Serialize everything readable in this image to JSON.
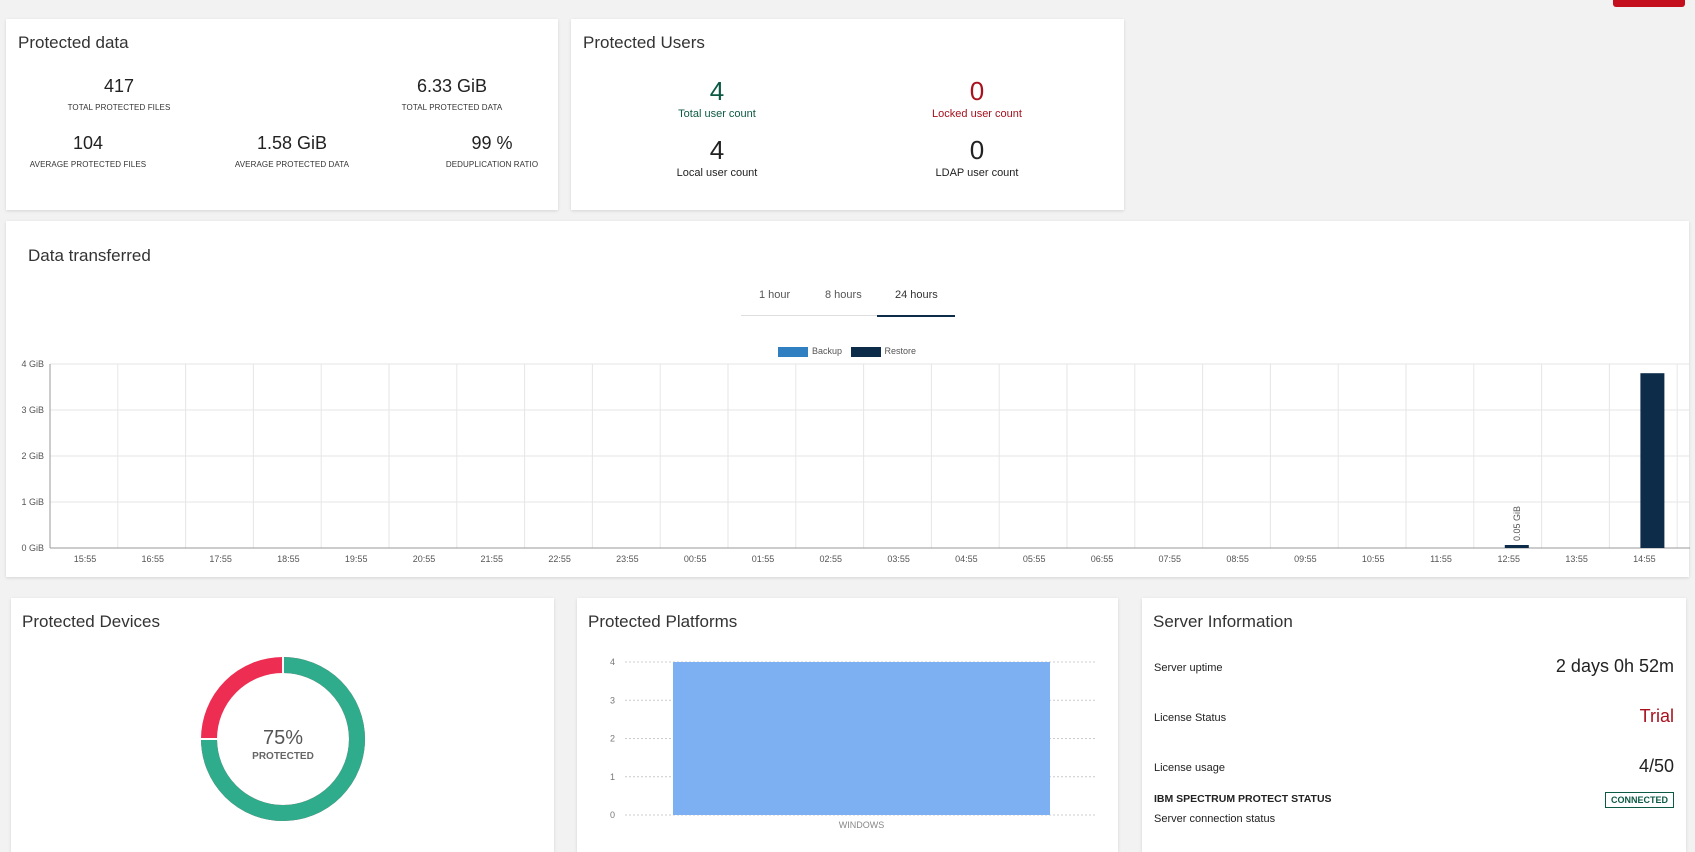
{
  "protected_data": {
    "title": "Protected data",
    "stats": [
      {
        "value": "417",
        "label": "TOTAL PROTECTED FILES"
      },
      {
        "value": "6.33 GiB",
        "label": "TOTAL PROTECTED DATA"
      },
      {
        "value": "104",
        "label": "AVERAGE PROTECTED FILES"
      },
      {
        "value": "1.58 GiB",
        "label": "AVERAGE PROTECTED DATA"
      },
      {
        "value": "99 %",
        "label": "DEDUPLICATION RATIO"
      }
    ]
  },
  "protected_users": {
    "title": "Protected Users",
    "total": {
      "value": "4",
      "label": "Total user count"
    },
    "locked": {
      "value": "0",
      "label": "Locked user count"
    },
    "local": {
      "value": "4",
      "label": "Local user count"
    },
    "ldap": {
      "value": "0",
      "label": "LDAP user count"
    }
  },
  "data_transferred": {
    "title": "Data transferred",
    "tabs": [
      {
        "label": "1 hour",
        "active": false
      },
      {
        "label": "8 hours",
        "active": false
      },
      {
        "label": "24 hours",
        "active": true
      }
    ],
    "legend": [
      {
        "name": "Backup",
        "color": "#2f7fc1"
      },
      {
        "name": "Restore",
        "color": "#0d2c4a"
      }
    ]
  },
  "protected_devices": {
    "title": "Protected Devices",
    "percent_text": "75%",
    "label": "PROTECTED",
    "protected_fraction": 0.75,
    "colors": {
      "protected": "#2fac8c",
      "unprotected": "#ee2d52"
    }
  },
  "protected_platforms": {
    "title": "Protected Platforms"
  },
  "server_info": {
    "title": "Server Information",
    "uptime_label": "Server uptime",
    "uptime_value": "2 days 0h 52m",
    "license_status_label": "License Status",
    "license_status_value": "Trial",
    "license_usage_label": "License usage",
    "license_usage_value": "4/50",
    "spectrum_label": "IBM SPECTRUM PROTECT STATUS",
    "spectrum_badge": "CONNECTED",
    "connection_label": "Server connection status"
  },
  "chart_data": [
    {
      "type": "bar",
      "categories": [
        "15:55",
        "16:55",
        "17:55",
        "18:55",
        "19:55",
        "20:55",
        "21:55",
        "22:55",
        "23:55",
        "00:55",
        "01:55",
        "02:55",
        "03:55",
        "04:55",
        "05:55",
        "06:55",
        "07:55",
        "08:55",
        "09:55",
        "10:55",
        "11:55",
        "12:55",
        "13:55",
        "14:55"
      ],
      "series": [
        {
          "name": "Backup",
          "values": [
            0,
            0,
            0,
            0,
            0,
            0,
            0,
            0,
            0,
            0,
            0,
            0,
            0,
            0,
            0,
            0,
            0,
            0,
            0,
            0,
            0,
            0,
            0,
            0
          ]
        },
        {
          "name": "Restore",
          "values": [
            0,
            0,
            0,
            0,
            0,
            0,
            0,
            0,
            0,
            0,
            0,
            0,
            0,
            0,
            0,
            0,
            0,
            0,
            0,
            0,
            0,
            0.05,
            0,
            3.8
          ]
        }
      ],
      "ylim": [
        0,
        4
      ],
      "yticks": [
        "0 GiB",
        "1 GiB",
        "2 GiB",
        "3 GiB",
        "4 GiB"
      ],
      "data_labels": [
        {
          "category": "12:55",
          "text": "0.05 GiB"
        }
      ],
      "grid": true,
      "legend": "top-center"
    },
    {
      "type": "bar",
      "categories": [
        "WINDOWS"
      ],
      "values": [
        4
      ],
      "ylim": [
        0,
        4
      ],
      "yticks": [
        "0",
        "1",
        "2",
        "3",
        "4"
      ],
      "color": "#7db0f2"
    }
  ]
}
